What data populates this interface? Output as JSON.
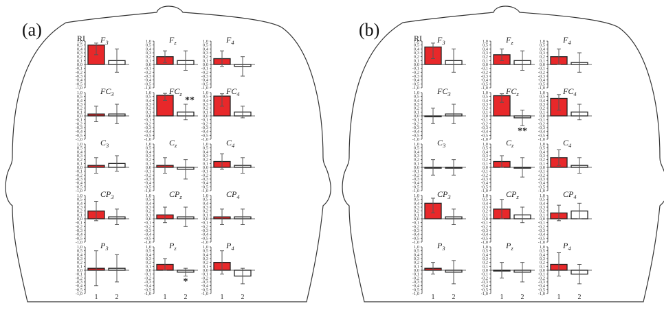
{
  "colors": {
    "cond1": "#e8282a",
    "cond2": "#ffffff",
    "bar_stroke": "#222222",
    "errorbar": "#555555"
  },
  "y_ticks": [
    "1,0",
    "0,5",
    "0,4",
    "0,3",
    "0,2",
    "0,1",
    "0,0",
    "-0,1",
    "-0,2",
    "-0,3",
    "-0,4",
    "-0,5",
    "-1,0"
  ],
  "x_ticks": [
    "1",
    "2"
  ],
  "y_axis_label": "RI",
  "panels": [
    {
      "label": "(a)"
    },
    {
      "label": "(b)"
    }
  ],
  "chart_data": [
    {
      "type": "bar",
      "panel": "(a)",
      "ylabel": "RI",
      "categories": [
        "1",
        "2"
      ],
      "ylim": [
        -1.0,
        1.0
      ],
      "subplots": [
        {
          "electrode": "F",
          "sub": "3",
          "values": [
            0.5,
            0.1
          ],
          "errors": [
            0.25,
            0.3
          ],
          "sig": ""
        },
        {
          "electrode": "F",
          "sub": "z",
          "values": [
            0.2,
            0.1
          ],
          "errors": [
            0.15,
            0.25
          ],
          "sig": ""
        },
        {
          "electrode": "F",
          "sub": "4",
          "values": [
            0.15,
            -0.05
          ],
          "errors": [
            0.2,
            0.25
          ],
          "sig": ""
        },
        {
          "electrode": "FC",
          "sub": "3",
          "values": [
            0.05,
            0.05
          ],
          "errors": [
            0.2,
            0.25
          ],
          "sig": ""
        },
        {
          "electrode": "FC",
          "sub": "z",
          "values": [
            0.65,
            0.1
          ],
          "errors": [
            0.25,
            0.2
          ],
          "sig": "**"
        },
        {
          "electrode": "FC",
          "sub": "4",
          "values": [
            0.55,
            0.1
          ],
          "errors": [
            0.3,
            0.15
          ],
          "sig": ""
        },
        {
          "electrode": "C",
          "sub": "3",
          "values": [
            0.05,
            0.1
          ],
          "errors": [
            0.2,
            0.2
          ],
          "sig": ""
        },
        {
          "electrode": "C",
          "sub": "z",
          "values": [
            0.05,
            -0.05
          ],
          "errors": [
            0.2,
            0.25
          ],
          "sig": ""
        },
        {
          "electrode": "C",
          "sub": "4",
          "values": [
            0.15,
            0.05
          ],
          "errors": [
            0.2,
            0.2
          ],
          "sig": ""
        },
        {
          "electrode": "CP",
          "sub": "3",
          "values": [
            0.2,
            0.05
          ],
          "errors": [
            0.25,
            0.2
          ],
          "sig": ""
        },
        {
          "electrode": "CP",
          "sub": "z",
          "values": [
            0.1,
            0.05
          ],
          "errors": [
            0.2,
            0.25
          ],
          "sig": ""
        },
        {
          "electrode": "CP",
          "sub": "4",
          "values": [
            0.05,
            0.05
          ],
          "errors": [
            0.2,
            0.2
          ],
          "sig": ""
        },
        {
          "electrode": "P",
          "sub": "3",
          "values": [
            0.05,
            0.05
          ],
          "errors": [
            0.45,
            0.35
          ],
          "sig": ""
        },
        {
          "electrode": "P",
          "sub": "z",
          "values": [
            0.15,
            -0.05
          ],
          "errors": [
            0.15,
            0.1
          ],
          "sig": "*"
        },
        {
          "electrode": "P",
          "sub": "4",
          "values": [
            0.2,
            -0.15
          ],
          "errors": [
            0.3,
            0.2
          ],
          "sig": ""
        }
      ]
    },
    {
      "type": "bar",
      "panel": "(b)",
      "ylabel": "RI",
      "categories": [
        "1",
        "2"
      ],
      "ylim": [
        -1.0,
        1.0
      ],
      "subplots": [
        {
          "electrode": "F",
          "sub": "3",
          "values": [
            0.45,
            0.1
          ],
          "errors": [
            0.3,
            0.3
          ],
          "sig": ""
        },
        {
          "electrode": "F",
          "sub": "z",
          "values": [
            0.25,
            0.1
          ],
          "errors": [
            0.15,
            0.25
          ],
          "sig": ""
        },
        {
          "electrode": "F",
          "sub": "4",
          "values": [
            0.2,
            0.05
          ],
          "errors": [
            0.2,
            0.25
          ],
          "sig": ""
        },
        {
          "electrode": "FC",
          "sub": "3",
          "values": [
            0.0,
            0.05
          ],
          "errors": [
            0.2,
            0.25
          ],
          "sig": ""
        },
        {
          "electrode": "FC",
          "sub": "z",
          "values": [
            0.6,
            -0.05
          ],
          "errors": [
            0.25,
            0.2
          ],
          "sig": "**"
        },
        {
          "electrode": "FC",
          "sub": "4",
          "values": [
            0.45,
            0.1
          ],
          "errors": [
            0.3,
            0.2
          ],
          "sig": ""
        },
        {
          "electrode": "C",
          "sub": "3",
          "values": [
            0.0,
            0.0
          ],
          "errors": [
            0.2,
            0.2
          ],
          "sig": ""
        },
        {
          "electrode": "C",
          "sub": "z",
          "values": [
            0.15,
            0.0
          ],
          "errors": [
            0.15,
            0.25
          ],
          "sig": ""
        },
        {
          "electrode": "C",
          "sub": "4",
          "values": [
            0.25,
            0.05
          ],
          "errors": [
            0.2,
            0.2
          ],
          "sig": ""
        },
        {
          "electrode": "CP",
          "sub": "3",
          "values": [
            0.4,
            0.05
          ],
          "errors": [
            0.25,
            0.2
          ],
          "sig": ""
        },
        {
          "electrode": "CP",
          "sub": "z",
          "values": [
            0.25,
            0.1
          ],
          "errors": [
            0.25,
            0.2
          ],
          "sig": ""
        },
        {
          "electrode": "CP",
          "sub": "4",
          "values": [
            0.15,
            0.2
          ],
          "errors": [
            0.2,
            0.2
          ],
          "sig": ""
        },
        {
          "electrode": "P",
          "sub": "3",
          "values": [
            0.05,
            -0.05
          ],
          "errors": [
            0.15,
            0.3
          ],
          "sig": ""
        },
        {
          "electrode": "P",
          "sub": "z",
          "values": [
            0.0,
            -0.05
          ],
          "errors": [
            0.2,
            0.25
          ],
          "sig": ""
        },
        {
          "electrode": "P",
          "sub": "4",
          "values": [
            0.15,
            -0.1
          ],
          "errors": [
            0.3,
            0.25
          ],
          "sig": ""
        }
      ]
    }
  ]
}
